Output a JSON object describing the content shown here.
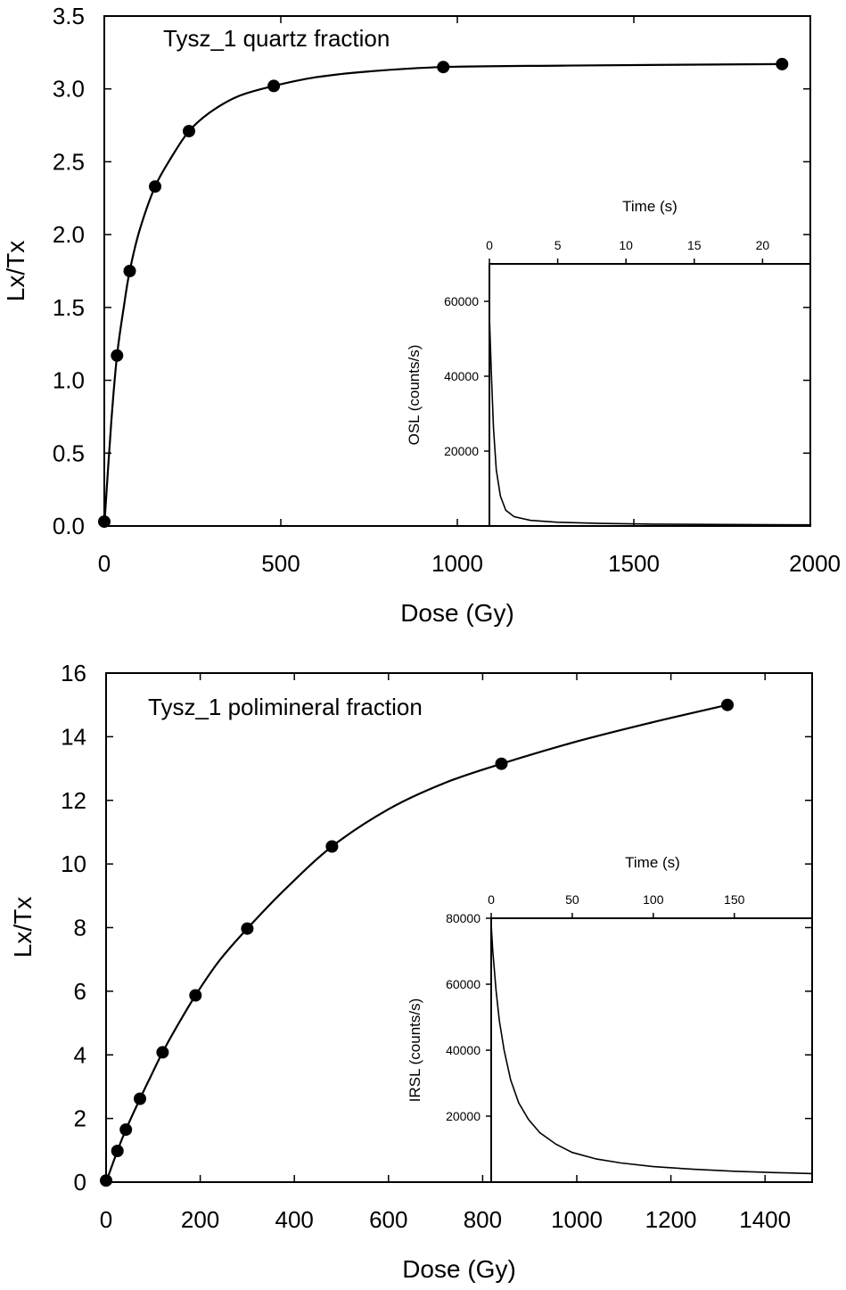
{
  "chart_data": [
    {
      "type": "scatter",
      "panel": "top",
      "annotation": "Tysz_1 quartz fraction",
      "xlabel": "Dose (Gy)",
      "ylabel": "Lx/Tx",
      "xlim": [
        0,
        2000
      ],
      "ylim": [
        0.0,
        3.5
      ],
      "x_ticks": [
        "0",
        "500",
        "1000",
        "1500",
        "2000"
      ],
      "y_ticks": [
        "0.0",
        "0.5",
        "1.0",
        "1.5",
        "2.0",
        "2.5",
        "3.0",
        "3.5"
      ],
      "grid": false,
      "points": [
        {
          "x": 0,
          "y": 0.03
        },
        {
          "x": 36,
          "y": 1.17
        },
        {
          "x": 72,
          "y": 1.75
        },
        {
          "x": 144,
          "y": 2.33
        },
        {
          "x": 240,
          "y": 2.71
        },
        {
          "x": 480,
          "y": 3.02
        },
        {
          "x": 960,
          "y": 3.15
        },
        {
          "x": 1920,
          "y": 3.17
        }
      ],
      "fit_curve": [
        {
          "x": 0,
          "y": 0.0
        },
        {
          "x": 20,
          "y": 0.72
        },
        {
          "x": 36,
          "y": 1.17
        },
        {
          "x": 55,
          "y": 1.5
        },
        {
          "x": 72,
          "y": 1.75
        },
        {
          "x": 100,
          "y": 2.03
        },
        {
          "x": 144,
          "y": 2.33
        },
        {
          "x": 190,
          "y": 2.53
        },
        {
          "x": 240,
          "y": 2.71
        },
        {
          "x": 300,
          "y": 2.84
        },
        {
          "x": 380,
          "y": 2.95
        },
        {
          "x": 480,
          "y": 3.02
        },
        {
          "x": 600,
          "y": 3.08
        },
        {
          "x": 750,
          "y": 3.12
        },
        {
          "x": 960,
          "y": 3.15
        },
        {
          "x": 1300,
          "y": 3.16
        },
        {
          "x": 1920,
          "y": 3.17
        }
      ],
      "inset": {
        "xlabel": "Time (s)",
        "ylabel": "OSL (counts/s)",
        "xlim": [
          0,
          23.5
        ],
        "ylim": [
          0,
          70000
        ],
        "x_ticks": [
          "0",
          "5",
          "10",
          "15",
          "20"
        ],
        "y_ticks": [
          "20000",
          "40000",
          "60000"
        ],
        "decay_curve": [
          {
            "x": 0,
            "y": 56000
          },
          {
            "x": 0.15,
            "y": 40000
          },
          {
            "x": 0.3,
            "y": 26000
          },
          {
            "x": 0.5,
            "y": 15000
          },
          {
            "x": 0.8,
            "y": 8000
          },
          {
            "x": 1.2,
            "y": 4200
          },
          {
            "x": 1.8,
            "y": 2500
          },
          {
            "x": 3,
            "y": 1500
          },
          {
            "x": 5,
            "y": 1000
          },
          {
            "x": 8,
            "y": 700
          },
          {
            "x": 12,
            "y": 500
          },
          {
            "x": 17,
            "y": 400
          },
          {
            "x": 23.5,
            "y": 300
          }
        ]
      }
    },
    {
      "type": "scatter",
      "panel": "bottom",
      "annotation": "Tysz_1 polimineral fraction",
      "xlabel": "Dose (Gy)",
      "ylabel": "Lx/Tx",
      "xlim": [
        0,
        1500
      ],
      "ylim": [
        0,
        16
      ],
      "x_ticks": [
        "0",
        "200",
        "400",
        "600",
        "800",
        "1000",
        "1200",
        "1400"
      ],
      "y_ticks": [
        "0",
        "2",
        "4",
        "6",
        "8",
        "10",
        "12",
        "14",
        "16"
      ],
      "grid": false,
      "points": [
        {
          "x": 0,
          "y": 0.05
        },
        {
          "x": 24,
          "y": 0.98
        },
        {
          "x": 42,
          "y": 1.65
        },
        {
          "x": 72,
          "y": 2.62
        },
        {
          "x": 120,
          "y": 4.08
        },
        {
          "x": 190,
          "y": 5.87
        },
        {
          "x": 300,
          "y": 7.97
        },
        {
          "x": 480,
          "y": 10.55
        },
        {
          "x": 840,
          "y": 13.15
        },
        {
          "x": 1320,
          "y": 15.0
        }
      ],
      "fit_curve": [
        {
          "x": 0,
          "y": 0.0
        },
        {
          "x": 24,
          "y": 0.98
        },
        {
          "x": 42,
          "y": 1.65
        },
        {
          "x": 72,
          "y": 2.62
        },
        {
          "x": 95,
          "y": 3.33
        },
        {
          "x": 120,
          "y": 4.08
        },
        {
          "x": 150,
          "y": 4.88
        },
        {
          "x": 190,
          "y": 5.87
        },
        {
          "x": 240,
          "y": 6.95
        },
        {
          "x": 300,
          "y": 7.97
        },
        {
          "x": 380,
          "y": 9.2
        },
        {
          "x": 480,
          "y": 10.55
        },
        {
          "x": 600,
          "y": 11.72
        },
        {
          "x": 720,
          "y": 12.55
        },
        {
          "x": 840,
          "y": 13.15
        },
        {
          "x": 1000,
          "y": 13.85
        },
        {
          "x": 1160,
          "y": 14.45
        },
        {
          "x": 1320,
          "y": 15.0
        }
      ],
      "inset": {
        "xlabel": "Time (s)",
        "ylabel": "IRSL (counts/s)",
        "xlim": [
          0,
          198
        ],
        "ylim": [
          0,
          80000
        ],
        "x_ticks": [
          "0",
          "50",
          "100",
          "150"
        ],
        "y_ticks": [
          "20000",
          "40000",
          "60000",
          "80000"
        ],
        "decay_curve": [
          {
            "x": 0,
            "y": 78000
          },
          {
            "x": 1,
            "y": 70000
          },
          {
            "x": 3,
            "y": 58000
          },
          {
            "x": 5,
            "y": 49000
          },
          {
            "x": 8,
            "y": 40000
          },
          {
            "x": 12,
            "y": 31000
          },
          {
            "x": 17,
            "y": 24000
          },
          {
            "x": 23,
            "y": 19000
          },
          {
            "x": 30,
            "y": 15000
          },
          {
            "x": 40,
            "y": 11500
          },
          {
            "x": 50,
            "y": 9000
          },
          {
            "x": 65,
            "y": 7000
          },
          {
            "x": 80,
            "y": 5800
          },
          {
            "x": 100,
            "y": 4700
          },
          {
            "x": 125,
            "y": 3900
          },
          {
            "x": 150,
            "y": 3300
          },
          {
            "x": 175,
            "y": 2900
          },
          {
            "x": 198,
            "y": 2600
          }
        ]
      }
    }
  ]
}
